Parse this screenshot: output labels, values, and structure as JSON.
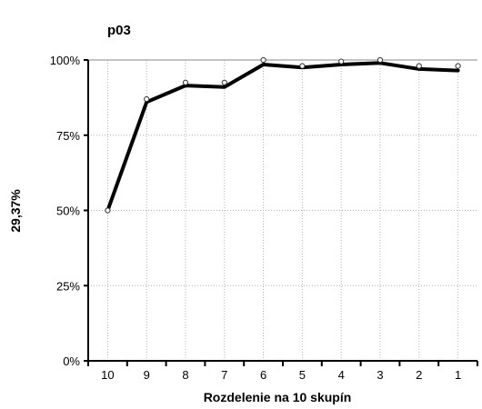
{
  "chart_data": {
    "type": "line",
    "title": "p03",
    "xlabel": "Rozdelenie na 10 skupín",
    "ylabel": "29,37%",
    "categories": [
      "10",
      "9",
      "8",
      "7",
      "6",
      "5",
      "4",
      "3",
      "2",
      "1"
    ],
    "series": [
      {
        "values": [
          50,
          86,
          91.5,
          91,
          98.5,
          97.5,
          98.5,
          99,
          97,
          96.5
        ],
        "style": "thick line"
      },
      {
        "values": [
          50,
          87,
          92.5,
          92.5,
          100,
          98,
          99.5,
          100,
          98,
          98
        ],
        "style": "open markers"
      }
    ],
    "ylim": [
      0,
      100
    ],
    "yticks": [
      0,
      25,
      50,
      75,
      100
    ],
    "ytick_labels": [
      "0%",
      "25%",
      "50%",
      "75%",
      "100%"
    ],
    "grid": true,
    "legend": "none",
    "colors": {
      "line": "#000000",
      "marker_fill": "#ffffff",
      "grid": "#b3b3b3",
      "axis": "#000000",
      "background": "#ffffff"
    }
  }
}
